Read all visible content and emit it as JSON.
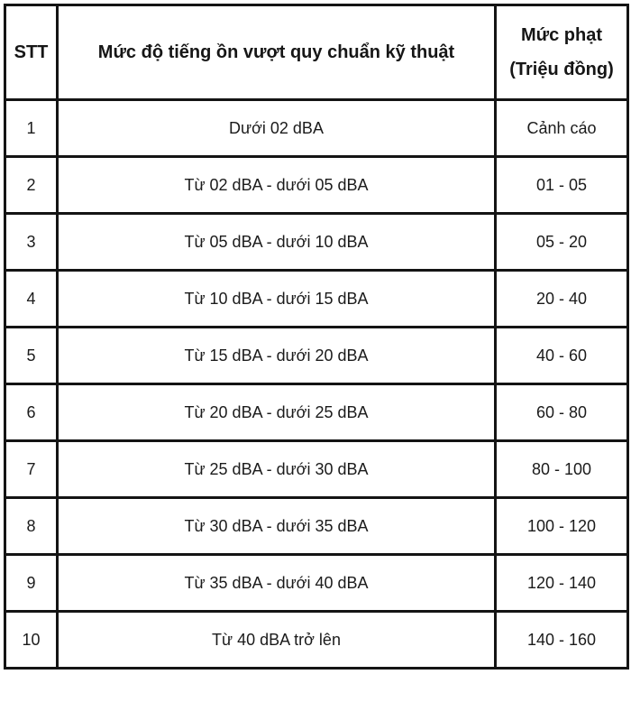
{
  "table": {
    "headers": {
      "stt": "STT",
      "level": "Mức độ tiếng ồn vượt quy chuẩn kỹ thuật",
      "fine_line1": "Mức phạt",
      "fine_line2": "(Triệu đồng)"
    },
    "rows": [
      {
        "stt": "1",
        "level": "Dưới 02 dBA",
        "fine": "Cảnh cáo"
      },
      {
        "stt": "2",
        "level": "Từ 02 dBA - dưới 05 dBA",
        "fine": "01 - 05"
      },
      {
        "stt": "3",
        "level": "Từ 05 dBA - dưới 10 dBA",
        "fine": "05 - 20"
      },
      {
        "stt": "4",
        "level": "Từ 10 dBA - dưới 15 dBA",
        "fine": "20 - 40"
      },
      {
        "stt": "5",
        "level": "Từ 15 dBA - dưới 20 dBA",
        "fine": "40 - 60"
      },
      {
        "stt": "6",
        "level": "Từ 20 dBA - dưới 25 dBA",
        "fine": "60 - 80"
      },
      {
        "stt": "7",
        "level": "Từ 25 dBA - dưới 30 dBA",
        "fine": "80 - 100"
      },
      {
        "stt": "8",
        "level": "Từ 30 dBA - dưới 35 dBA",
        "fine": "100 - 120"
      },
      {
        "stt": "9",
        "level": "Từ 35 dBA - dưới 40 dBA",
        "fine": "120 - 140"
      },
      {
        "stt": "10",
        "level": "Từ 40 dBA trở lên",
        "fine": "140 - 160"
      }
    ]
  },
  "colors": {
    "border": "#141414",
    "text": "#1b1b1b",
    "background": "#ffffff"
  }
}
